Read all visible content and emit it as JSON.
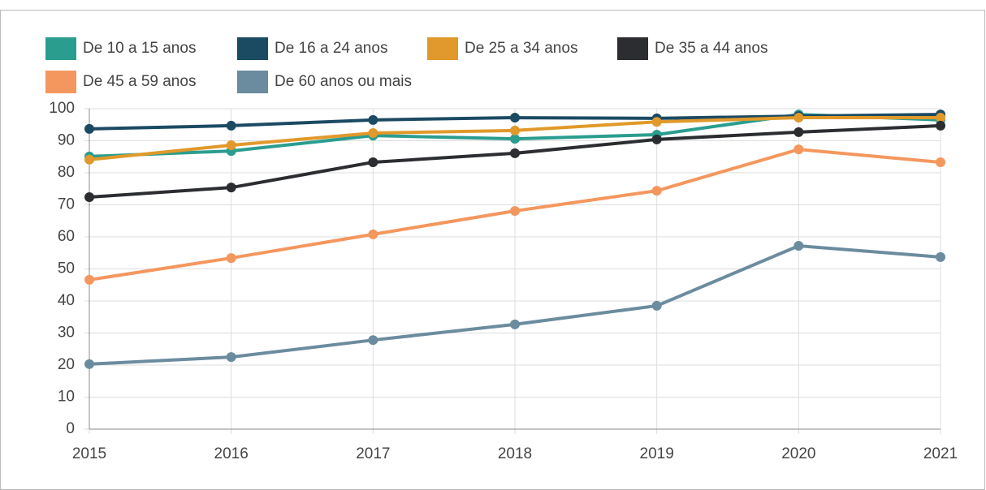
{
  "chart_data": {
    "type": "line",
    "categories": [
      "2015",
      "2016",
      "2017",
      "2018",
      "2019",
      "2020",
      "2021"
    ],
    "series": [
      {
        "name": "De 10 a 15 anos",
        "color": "#2a9d8f",
        "values": [
          85.1,
          86.8,
          91.6,
          90.6,
          91.9,
          98.2,
          96.5
        ]
      },
      {
        "name": "De 16 a 24 anos",
        "color": "#1b4a63",
        "values": [
          93.7,
          94.7,
          96.5,
          97.2,
          97.0,
          97.7,
          98.2
        ]
      },
      {
        "name": "De 25 a 34 anos",
        "color": "#e0992a",
        "values": [
          84.1,
          88.6,
          92.4,
          93.2,
          95.9,
          97.2,
          97.2
        ]
      },
      {
        "name": "De 35 a 44 anos",
        "color": "#2b2d31",
        "values": [
          72.4,
          75.4,
          83.3,
          86.1,
          90.4,
          92.7,
          94.7
        ]
      },
      {
        "name": "De 45 a 59 anos",
        "color": "#f4975e",
        "values": [
          46.6,
          53.4,
          60.8,
          68.1,
          74.4,
          87.3,
          83.3
        ]
      },
      {
        "name": "De 60 anos ou mais",
        "color": "#6b8c9e",
        "values": [
          20.3,
          22.5,
          27.8,
          32.7,
          38.5,
          57.2,
          53.7
        ]
      }
    ],
    "ylim": [
      0,
      100
    ],
    "yticks": [
      0,
      10,
      20,
      30,
      40,
      50,
      60,
      70,
      80,
      90,
      100
    ],
    "grid": true
  }
}
